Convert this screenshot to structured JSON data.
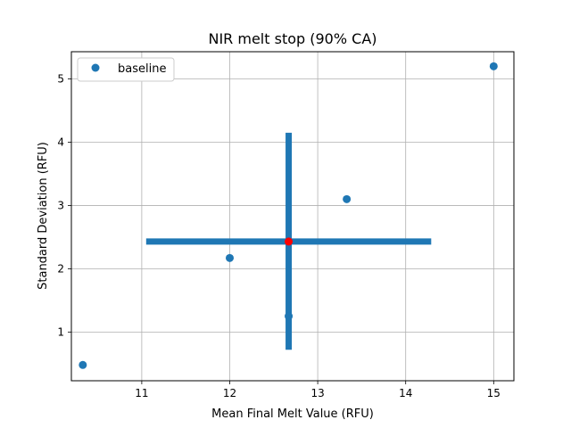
{
  "chart_data": {
    "type": "scatter",
    "title": "NIR melt stop (90% CA)",
    "xlabel": "Mean Final Melt Value (RFU)",
    "ylabel": "Standard Deviation (RFU)",
    "xlim": [
      10.2,
      15.23
    ],
    "ylim": [
      0.23,
      5.43
    ],
    "xticks": [
      11,
      12,
      13,
      14,
      15
    ],
    "yticks": [
      1,
      2,
      3,
      4,
      5
    ],
    "grid": true,
    "legend_position": "top-left",
    "series": [
      {
        "name": "baseline",
        "color": "#1f77b4",
        "points": [
          {
            "x": 10.33,
            "y": 0.48
          },
          {
            "x": 12.0,
            "y": 2.17
          },
          {
            "x": 12.67,
            "y": 1.25
          },
          {
            "x": 13.33,
            "y": 3.1
          },
          {
            "x": 15.0,
            "y": 5.2
          }
        ]
      }
    ],
    "center_point": {
      "x": 12.67,
      "y": 2.43,
      "color": "#ff0000",
      "x_error": [
        11.05,
        14.29
      ],
      "y_error": [
        0.72,
        4.15
      ],
      "error_color": "#1f77b4"
    }
  }
}
